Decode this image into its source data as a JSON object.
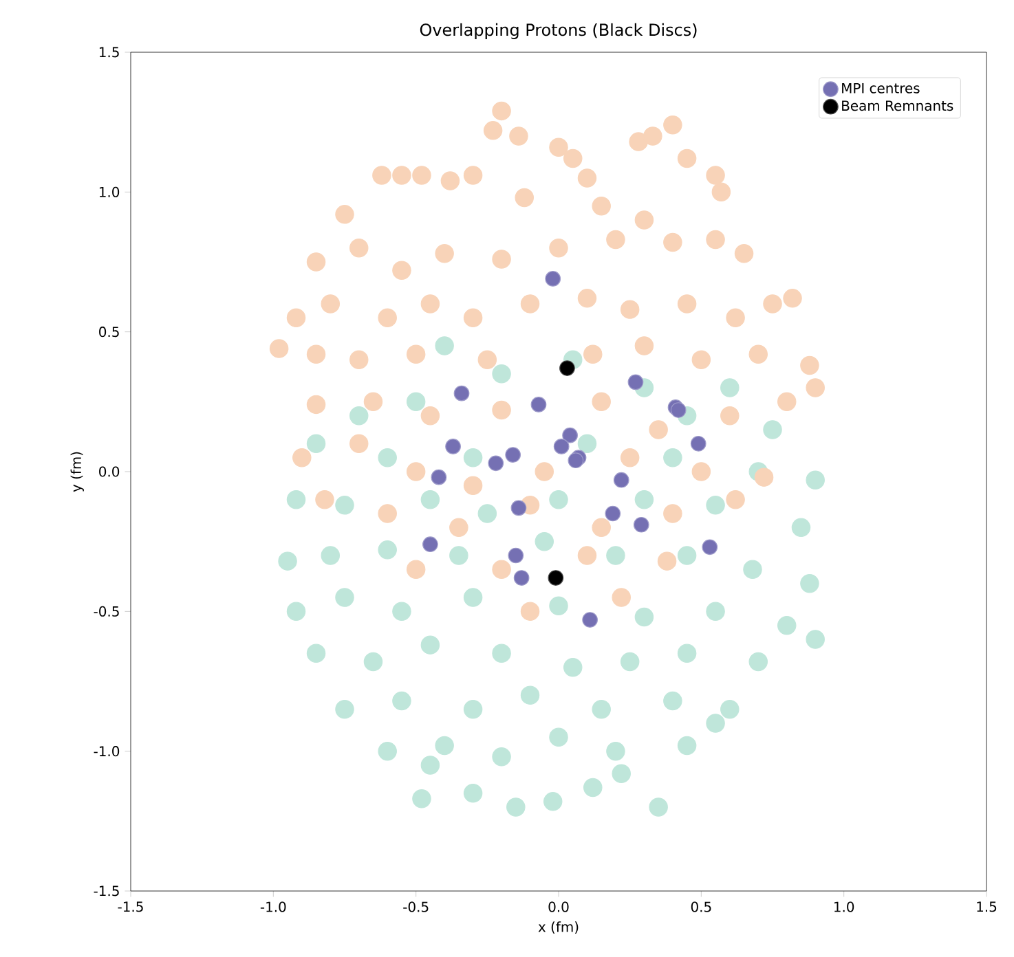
{
  "chart_data": {
    "type": "scatter",
    "title": "Overlapping Protons (Black Discs)",
    "xlabel": "x (fm)",
    "ylabel": "y (fm)",
    "xlim": [
      -1.5,
      1.5
    ],
    "ylim": [
      -1.5,
      1.5
    ],
    "xticks": [
      -1.5,
      {
        "value": -1.0,
        "label": "-1.0"
      },
      -0.5,
      {
        "value": 0.0,
        "label": "0.0"
      },
      0.5,
      {
        "value": 1.0,
        "label": "1.0"
      },
      1.5
    ],
    "yticks": [
      -1.5,
      {
        "value": -1.0,
        "label": "-1.0"
      },
      -0.5,
      {
        "value": 0.0,
        "label": "0.0"
      },
      0.5,
      {
        "value": 1.0,
        "label": "1.0"
      },
      1.5
    ],
    "legend": "top right",
    "grid": false,
    "series": [
      {
        "color": "#bfe6da",
        "x": [
          -0.4,
          -0.2,
          0.05,
          0.3,
          0.6,
          -0.7,
          -0.5,
          0.45,
          0.75,
          -0.85,
          -0.6,
          -0.3,
          0.1,
          0.4,
          0.7,
          0.9,
          -0.92,
          -0.75,
          -0.45,
          -0.25,
          0.0,
          0.3,
          0.55,
          0.85,
          -0.95,
          -0.8,
          -0.6,
          -0.35,
          -0.05,
          0.2,
          0.45,
          0.68,
          0.88,
          -0.92,
          -0.75,
          -0.55,
          -0.3,
          0.0,
          0.3,
          0.55,
          0.8,
          0.9,
          -0.85,
          -0.65,
          -0.45,
          -0.2,
          0.05,
          0.25,
          0.45,
          0.7,
          -0.75,
          -0.55,
          -0.3,
          -0.1,
          0.15,
          0.4,
          0.6,
          -0.6,
          -0.4,
          -0.2,
          0.0,
          0.2,
          0.45,
          0.55,
          -0.45,
          -0.3,
          -0.15,
          -0.02,
          0.12,
          0.35,
          0.22,
          -0.48
        ],
        "values": [
          0.45,
          0.35,
          0.4,
          0.3,
          0.3,
          0.2,
          0.25,
          0.2,
          0.15,
          0.1,
          0.05,
          0.05,
          0.1,
          0.05,
          0.0,
          -0.03,
          -0.1,
          -0.12,
          -0.1,
          -0.15,
          -0.1,
          -0.1,
          -0.12,
          -0.2,
          -0.32,
          -0.3,
          -0.28,
          -0.3,
          -0.25,
          -0.3,
          -0.3,
          -0.35,
          -0.4,
          -0.5,
          -0.45,
          -0.5,
          -0.45,
          -0.48,
          -0.52,
          -0.5,
          -0.55,
          -0.6,
          -0.65,
          -0.68,
          -0.62,
          -0.65,
          -0.7,
          -0.68,
          -0.65,
          -0.68,
          -0.85,
          -0.82,
          -0.85,
          -0.8,
          -0.85,
          -0.82,
          -0.85,
          -1.0,
          -0.98,
          -1.02,
          -0.95,
          -1.0,
          -0.98,
          -0.9,
          -1.05,
          -1.15,
          -1.2,
          -1.18,
          -1.13,
          -1.2,
          -1.08,
          -1.17
        ]
      },
      {
        "color": "#f8d3b8",
        "x": [
          -0.2,
          -0.23,
          -0.14,
          0.0,
          0.05,
          0.1,
          0.28,
          0.33,
          0.4,
          0.45,
          0.55,
          0.57,
          -0.62,
          -0.55,
          -0.48,
          -0.38,
          -0.3,
          -0.12,
          0.15,
          0.3,
          -0.75,
          -0.85,
          -0.7,
          -0.55,
          -0.4,
          -0.2,
          0.0,
          0.2,
          0.4,
          0.55,
          0.65,
          -0.92,
          -0.8,
          -0.6,
          -0.45,
          -0.3,
          -0.1,
          0.1,
          0.25,
          0.45,
          0.62,
          0.75,
          0.82,
          -0.98,
          -0.85,
          -0.7,
          -0.5,
          -0.25,
          0.12,
          0.3,
          0.5,
          0.7,
          0.88,
          -0.85,
          -0.65,
          -0.45,
          -0.2,
          0.15,
          0.35,
          0.6,
          0.8,
          0.9,
          -0.9,
          -0.7,
          -0.5,
          -0.3,
          -0.05,
          0.25,
          0.5,
          0.72,
          -0.82,
          -0.6,
          -0.35,
          -0.1,
          0.15,
          0.4,
          0.62,
          -0.5,
          -0.2,
          0.1,
          0.38,
          -0.1,
          0.22
        ],
        "values": [
          1.29,
          1.22,
          1.2,
          1.16,
          1.12,
          1.05,
          1.18,
          1.2,
          1.24,
          1.12,
          1.06,
          1.0,
          1.06,
          1.06,
          1.06,
          1.04,
          1.06,
          0.98,
          0.95,
          0.9,
          0.92,
          0.75,
          0.8,
          0.72,
          0.78,
          0.76,
          0.8,
          0.83,
          0.82,
          0.83,
          0.78,
          0.55,
          0.6,
          0.55,
          0.6,
          0.55,
          0.6,
          0.62,
          0.58,
          0.6,
          0.55,
          0.6,
          0.62,
          0.44,
          0.42,
          0.4,
          0.42,
          0.4,
          0.42,
          0.45,
          0.4,
          0.42,
          0.38,
          0.24,
          0.25,
          0.2,
          0.22,
          0.25,
          0.15,
          0.2,
          0.25,
          0.3,
          0.05,
          0.1,
          0.0,
          -0.05,
          0.0,
          0.05,
          0.0,
          -0.02,
          -0.1,
          -0.15,
          -0.2,
          -0.12,
          -0.2,
          -0.15,
          -0.1,
          -0.35,
          -0.35,
          -0.3,
          -0.32,
          -0.5,
          -0.45
        ]
      },
      {
        "name": "MPI centres",
        "color": "#7570b3",
        "x": [
          -0.02,
          -0.34,
          -0.07,
          0.27,
          0.41,
          0.42,
          0.49,
          -0.37,
          0.04,
          0.01,
          0.07,
          0.06,
          -0.16,
          -0.22,
          -0.42,
          0.22,
          -0.14,
          0.19,
          0.29,
          0.53,
          -0.45,
          -0.15,
          -0.13,
          0.11
        ],
        "values": [
          0.69,
          0.28,
          0.24,
          0.32,
          0.23,
          0.22,
          0.1,
          0.09,
          0.13,
          0.09,
          0.05,
          0.04,
          0.06,
          0.03,
          -0.02,
          -0.03,
          -0.13,
          -0.15,
          -0.19,
          -0.27,
          -0.26,
          -0.3,
          -0.38,
          -0.53
        ]
      },
      {
        "name": "Beam Remnants",
        "color": "#000000",
        "x": [
          0.03,
          -0.01
        ],
        "values": [
          0.37,
          -0.38
        ]
      }
    ]
  }
}
